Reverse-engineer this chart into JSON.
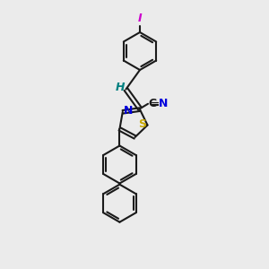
{
  "bg_color": "#ebebeb",
  "bond_color": "#1a1a1a",
  "s_color": "#c8a800",
  "n_color": "#0000dd",
  "h_color": "#008080",
  "i_color": "#cc00cc",
  "c_color": "#1a1a1a",
  "figsize": [
    3.0,
    3.0
  ],
  "dpi": 100,
  "xlim": [
    0,
    10
  ],
  "ylim": [
    0,
    10
  ],
  "ring_r": 0.7,
  "lw": 1.5
}
